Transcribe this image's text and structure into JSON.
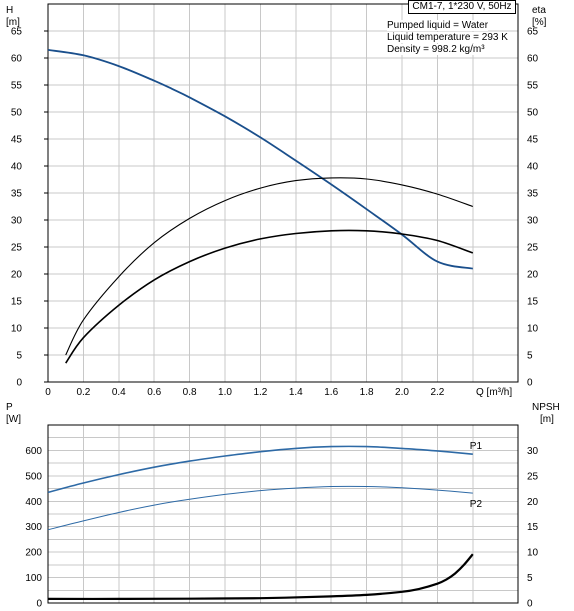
{
  "header": {
    "model": "CM1-7, 1*230 V, 50Hz",
    "liquid": "Pumped liquid = Water",
    "temperature": "Liquid temperature = 293 K",
    "density": "Density = 998.2 kg/m³"
  },
  "colors": {
    "head": "#1a4f8c",
    "eta": "#000000",
    "power": "#2e6aa6",
    "npsh": "#000000",
    "grid": "#c8c8c8"
  },
  "chart_data": [
    {
      "type": "line",
      "title": "",
      "ylabel": "H",
      "yunit": "[m]",
      "ylabel_right": "eta",
      "yunit_right": "[%]",
      "xlabel": "Q [m³/h]",
      "xlim": [
        0,
        2.6
      ],
      "ylim": [
        0,
        70
      ],
      "ylim_right": [
        0,
        70
      ],
      "xticks": [
        "0",
        "0.2",
        "0.4",
        "0.6",
        "0.8",
        "1.0",
        "1.2",
        "1.4",
        "1.6",
        "1.8",
        "2.0",
        "2.2"
      ],
      "yticks": [
        "0",
        "5",
        "10",
        "15",
        "20",
        "25",
        "30",
        "35",
        "40",
        "45",
        "50",
        "55",
        "60",
        "65"
      ],
      "grid": true,
      "series": [
        {
          "key": "head",
          "axis": "left",
          "x": [
            0,
            0.2,
            0.4,
            0.6,
            0.7,
            0.8,
            1.0,
            1.2,
            1.4,
            1.6,
            1.8,
            2.0,
            2.2,
            2.4
          ],
          "y": [
            61.5,
            60.5,
            58.5,
            55.8,
            54.3,
            52.7,
            49.2,
            45.3,
            41.0,
            36.6,
            32.0,
            27.3,
            22.3,
            21.0
          ]
        },
        {
          "key": "eta_outer",
          "axis": "right",
          "x": [
            0.1,
            0.2,
            0.4,
            0.6,
            0.8,
            1.0,
            1.2,
            1.4,
            1.6,
            1.8,
            2.0,
            2.2,
            2.4
          ],
          "y": [
            5,
            11.5,
            19.5,
            25.8,
            30.3,
            33.6,
            35.9,
            37.3,
            37.8,
            37.6,
            36.5,
            34.8,
            32.5
          ]
        },
        {
          "key": "eta_inner",
          "axis": "right",
          "x": [
            0.1,
            0.2,
            0.4,
            0.6,
            0.8,
            1.0,
            1.2,
            1.4,
            1.6,
            1.8,
            2.0,
            2.2,
            2.4
          ],
          "y": [
            3.5,
            8.2,
            14.2,
            18.9,
            22.3,
            24.8,
            26.5,
            27.5,
            28.0,
            28.0,
            27.4,
            26.2,
            23.9
          ]
        }
      ]
    },
    {
      "type": "line",
      "title": "",
      "ylabel": "P",
      "yunit": "[W]",
      "ylabel_right": "NPSH",
      "yunit_right": "[m]",
      "xlim": [
        0,
        2.6
      ],
      "ylim": [
        0,
        700
      ],
      "ylim_right": [
        0,
        35
      ],
      "yticks": [
        "0",
        "100",
        "200",
        "300",
        "400",
        "500",
        "600"
      ],
      "yticks_right": [
        "0",
        "5",
        "10",
        "15",
        "20",
        "25",
        "30"
      ],
      "grid": true,
      "series": [
        {
          "name": "P1",
          "key": "p1",
          "axis": "left",
          "x": [
            0,
            0.2,
            0.4,
            0.6,
            0.8,
            1.0,
            1.2,
            1.4,
            1.6,
            1.8,
            2.0,
            2.2,
            2.4
          ],
          "y": [
            435,
            472,
            505,
            534,
            558,
            578,
            595,
            608,
            615,
            615,
            608,
            598,
            585
          ]
        },
        {
          "name": "P2",
          "key": "p2",
          "axis": "left",
          "x": [
            0,
            0.2,
            0.4,
            0.6,
            0.8,
            1.0,
            1.2,
            1.4,
            1.6,
            1.8,
            2.0,
            2.2,
            2.4
          ],
          "y": [
            288,
            323,
            356,
            385,
            408,
            427,
            442,
            452,
            458,
            458,
            453,
            444,
            432
          ]
        },
        {
          "key": "npsh",
          "axis": "right",
          "x": [
            0,
            0.4,
            0.8,
            1.2,
            1.6,
            1.8,
            2.0,
            2.1,
            2.2,
            2.25,
            2.3,
            2.35,
            2.4
          ],
          "y": [
            0.8,
            0.8,
            0.85,
            0.95,
            1.3,
            1.6,
            2.2,
            2.8,
            3.8,
            4.6,
            5.8,
            7.5,
            9.6
          ]
        }
      ]
    }
  ]
}
